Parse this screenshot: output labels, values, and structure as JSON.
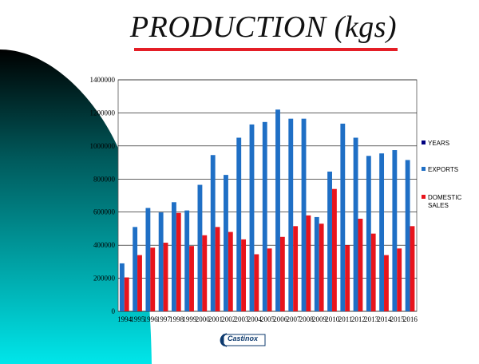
{
  "slide": {
    "title": "PRODUCTION (kgs)",
    "logo_text": "Castinox"
  },
  "colors": {
    "exports": "#1f6fc5",
    "domestic": "#e8141c",
    "years": "#000080",
    "title_rule": "#e41e26",
    "arc_top": "#000000",
    "arc_bottom": "#00e0e6"
  },
  "chart_data": {
    "type": "bar",
    "categories": [
      "1994",
      "1995",
      "1996",
      "1997",
      "1998",
      "1999",
      "2000",
      "2001",
      "2002",
      "2003",
      "2004",
      "2005",
      "2006",
      "2007",
      "2008",
      "2009",
      "2010",
      "2011",
      "2012",
      "2013",
      "2014",
      "2015",
      "2016"
    ],
    "series": [
      {
        "name": "YEARS",
        "values": [
          1994,
          1995,
          1996,
          1997,
          1998,
          1999,
          2000,
          2001,
          2002,
          2003,
          2004,
          2005,
          2006,
          2007,
          2008,
          2009,
          2010,
          2011,
          2012,
          2013,
          2014,
          2015,
          2016
        ]
      },
      {
        "name": "EXPORTS",
        "values": [
          290000,
          510000,
          625000,
          598000,
          660000,
          610000,
          765000,
          945000,
          825000,
          1050000,
          1130000,
          1145000,
          1220000,
          1165000,
          1165000,
          570000,
          845000,
          1135000,
          1050000,
          940000,
          955000,
          975000,
          915000
        ]
      },
      {
        "name": "DOMESTIC SALES",
        "values": [
          205000,
          340000,
          385000,
          415000,
          595000,
          395000,
          460000,
          510000,
          480000,
          435000,
          345000,
          380000,
          450000,
          515000,
          580000,
          530000,
          740000,
          400000,
          560000,
          470000,
          340000,
          380000,
          515000
        ]
      }
    ],
    "y_ticks": [
      "0",
      "200000",
      "400000",
      "600000",
      "800000",
      "1000000",
      "1200000",
      "1400000"
    ],
    "ylim": [
      0,
      1400000
    ],
    "legend_position": "right",
    "grid": true
  }
}
